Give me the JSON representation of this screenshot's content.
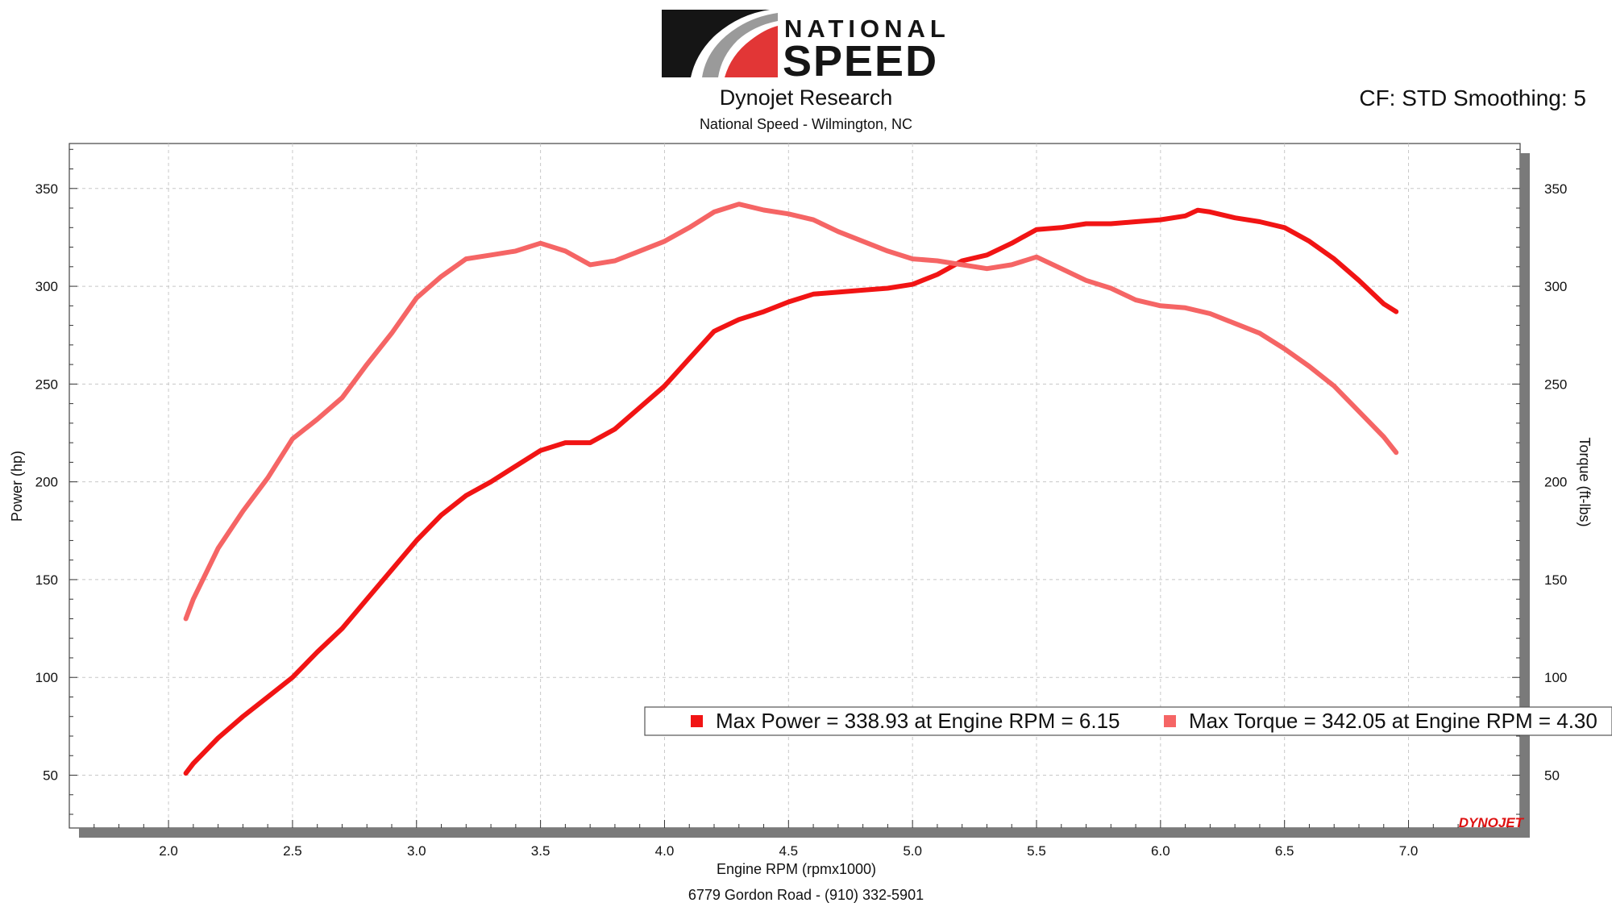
{
  "header": {
    "logo_text_top": "NATIONAL",
    "logo_text_bottom": "SPEED",
    "title": "Dynojet Research",
    "subtitle": "National Speed - Wilmington, NC",
    "correction_info": "CF: STD Smoothing: 5"
  },
  "footer": {
    "address": "6779 Gordon Road - (910) 332-5901"
  },
  "brand_mark": "DYNOJET",
  "colors": {
    "power": "#f11414",
    "torque": "#f56565",
    "grid": "#c8c8c8",
    "axis": "#333333"
  },
  "chart_data": {
    "type": "line",
    "xlabel": "Engine RPM (rpmx1000)",
    "ylabel_left": "Power (hp)",
    "ylabel_right": "Torque (ft-lbs)",
    "xlim": [
      1.6,
      7.45
    ],
    "ylim": [
      23,
      373
    ],
    "x_ticks": [
      2.0,
      2.5,
      3.0,
      3.5,
      4.0,
      4.5,
      5.0,
      5.5,
      6.0,
      6.5,
      7.0
    ],
    "x_tick_labels": [
      "2.0",
      "2.5",
      "3.0",
      "3.5",
      "4.0",
      "4.5",
      "5.0",
      "5.5",
      "6.0",
      "6.5",
      "7.0"
    ],
    "y_ticks": [
      50,
      100,
      150,
      200,
      250,
      300,
      350
    ],
    "y_tick_labels": [
      "50",
      "100",
      "150",
      "200",
      "250",
      "300",
      "350"
    ],
    "grid": true,
    "legend": {
      "position": "bottom-right",
      "entries": [
        {
          "label": "Max Power = 338.93 at Engine RPM = 6.15",
          "color": "#f11414"
        },
        {
          "label": "Max Torque = 342.05 at Engine RPM = 4.30",
          "color": "#f56565"
        }
      ]
    },
    "series": [
      {
        "key": "power",
        "axis": "left",
        "color": "#f11414",
        "x": [
          2.07,
          2.1,
          2.2,
          2.3,
          2.4,
          2.5,
          2.6,
          2.7,
          2.8,
          2.9,
          3.0,
          3.1,
          3.2,
          3.3,
          3.4,
          3.5,
          3.6,
          3.7,
          3.8,
          3.9,
          4.0,
          4.1,
          4.2,
          4.3,
          4.4,
          4.5,
          4.6,
          4.7,
          4.8,
          4.9,
          5.0,
          5.1,
          5.2,
          5.3,
          5.4,
          5.5,
          5.6,
          5.7,
          5.8,
          5.9,
          6.0,
          6.1,
          6.15,
          6.2,
          6.3,
          6.4,
          6.5,
          6.6,
          6.7,
          6.8,
          6.9,
          6.95
        ],
        "y": [
          51,
          56,
          69,
          80,
          90,
          100,
          113,
          125,
          140,
          155,
          170,
          183,
          193,
          200,
          208,
          216,
          220,
          220,
          227,
          238,
          249,
          263,
          277,
          283,
          287,
          292,
          296,
          297,
          298,
          299,
          301,
          306,
          313,
          316,
          322,
          329,
          330,
          332,
          332,
          333,
          334,
          336,
          338.9,
          338,
          335,
          333,
          330,
          323,
          314,
          303,
          291,
          287
        ]
      },
      {
        "key": "torque",
        "axis": "right",
        "color": "#f56565",
        "x": [
          2.07,
          2.1,
          2.2,
          2.3,
          2.4,
          2.5,
          2.6,
          2.7,
          2.8,
          2.9,
          3.0,
          3.1,
          3.2,
          3.3,
          3.4,
          3.5,
          3.6,
          3.7,
          3.8,
          3.9,
          4.0,
          4.1,
          4.2,
          4.3,
          4.4,
          4.5,
          4.6,
          4.7,
          4.8,
          4.9,
          5.0,
          5.1,
          5.2,
          5.3,
          5.4,
          5.5,
          5.6,
          5.7,
          5.8,
          5.9,
          6.0,
          6.1,
          6.2,
          6.3,
          6.4,
          6.5,
          6.6,
          6.7,
          6.8,
          6.9,
          6.95
        ],
        "y": [
          130,
          140,
          166,
          185,
          202,
          222,
          232,
          243,
          260,
          276,
          294,
          305,
          314,
          316,
          318,
          322,
          318,
          311,
          313,
          318,
          323,
          330,
          338,
          342,
          339,
          337,
          334,
          328,
          323,
          318,
          314,
          313,
          311,
          309,
          311,
          315,
          309,
          303,
          299,
          293,
          290,
          289,
          286,
          281,
          276,
          268,
          259,
          249,
          236,
          223,
          215
        ]
      }
    ]
  }
}
